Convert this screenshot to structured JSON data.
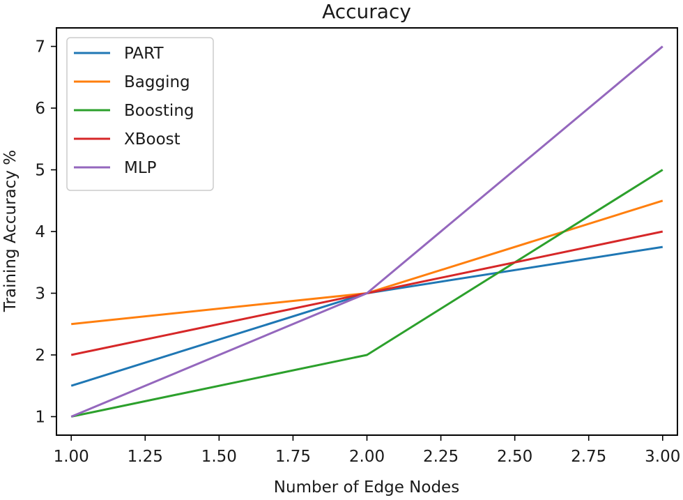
{
  "chart_data": {
    "type": "line",
    "title": "Accuracy",
    "xlabel": "Number of Edge Nodes",
    "ylabel": "Training Accuracy %",
    "x": [
      1,
      2,
      3
    ],
    "xlim": [
      0.95,
      3.05
    ],
    "ylim": [
      0.7,
      7.3
    ],
    "xticks": [
      1.0,
      1.25,
      1.5,
      1.75,
      2.0,
      2.25,
      2.5,
      2.75,
      3.0
    ],
    "xtick_labels": [
      "1.00",
      "1.25",
      "1.50",
      "1.75",
      "2.00",
      "2.25",
      "2.50",
      "2.75",
      "3.00"
    ],
    "yticks": [
      1,
      2,
      3,
      4,
      5,
      6,
      7
    ],
    "ytick_labels": [
      "1",
      "2",
      "3",
      "4",
      "5",
      "6",
      "7"
    ],
    "grid": false,
    "legend_position": "top-left",
    "series": [
      {
        "name": "PART",
        "color": "#1f77b4",
        "values": [
          1.5,
          3.0,
          3.75
        ]
      },
      {
        "name": "Bagging",
        "color": "#ff7f0e",
        "values": [
          2.5,
          3.0,
          4.5
        ]
      },
      {
        "name": "Boosting",
        "color": "#2ca02c",
        "values": [
          1.0,
          2.0,
          5.0
        ]
      },
      {
        "name": "XBoost",
        "color": "#d62728",
        "values": [
          2.0,
          3.0,
          4.0
        ]
      },
      {
        "name": "MLP",
        "color": "#9467bd",
        "values": [
          1.0,
          3.0,
          7.0
        ]
      }
    ]
  }
}
